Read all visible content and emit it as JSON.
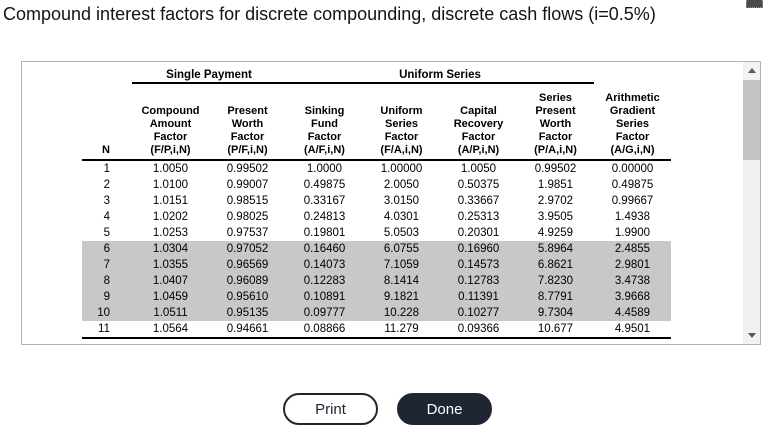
{
  "page": {
    "title": "Compound interest factors for discrete compounding, discrete cash flows (i=0.5%)"
  },
  "table": {
    "groups": [
      {
        "label": "Single Payment",
        "span": 2
      },
      {
        "label": "Uniform Series",
        "span": 4
      }
    ],
    "columns": [
      {
        "label": "N"
      },
      {
        "label": "Compound\nAmount\nFactor\n(F/P,i,N)"
      },
      {
        "label": "Present\nWorth\nFactor\n(P/F,i,N)"
      },
      {
        "label": "Sinking\nFund\nFactor\n(A/F,i,N)"
      },
      {
        "label": "Uniform\nSeries\nFactor\n(F/A,i,N)"
      },
      {
        "label": "Capital\nRecovery\nFactor\n(A/P,i,N)"
      },
      {
        "label": "Series\nPresent\nWorth\nFactor\n(P/A,i,N)"
      },
      {
        "label": "Arithmetic\nGradient\nSeries\nFactor\n(A/G,i,N)"
      }
    ],
    "rows": [
      [
        "1",
        "1.0050",
        "0.99502",
        "1.0000",
        "1.00000",
        "1.0050",
        "0.99502",
        "0.00000"
      ],
      [
        "2",
        "1.0100",
        "0.99007",
        "0.49875",
        "2.0050",
        "0.50375",
        "1.9851",
        "0.49875"
      ],
      [
        "3",
        "1.0151",
        "0.98515",
        "0.33167",
        "3.0150",
        "0.33667",
        "2.9702",
        "0.99667"
      ],
      [
        "4",
        "1.0202",
        "0.98025",
        "0.24813",
        "4.0301",
        "0.25313",
        "3.9505",
        "1.4938"
      ],
      [
        "5",
        "1.0253",
        "0.97537",
        "0.19801",
        "5.0503",
        "0.20301",
        "4.9259",
        "1.9900"
      ],
      [
        "6",
        "1.0304",
        "0.97052",
        "0.16460",
        "6.0755",
        "0.16960",
        "5.8964",
        "2.4855"
      ],
      [
        "7",
        "1.0355",
        "0.96569",
        "0.14073",
        "7.1059",
        "0.14573",
        "6.8621",
        "2.9801"
      ],
      [
        "8",
        "1.0407",
        "0.96089",
        "0.12283",
        "8.1414",
        "0.12783",
        "7.8230",
        "3.4738"
      ],
      [
        "9",
        "1.0459",
        "0.95610",
        "0.10891",
        "9.1821",
        "0.11391",
        "8.7791",
        "3.9668"
      ],
      [
        "10",
        "1.0511",
        "0.95135",
        "0.09777",
        "10.228",
        "0.10277",
        "9.7304",
        "4.4589"
      ],
      [
        "11",
        "1.0564",
        "0.94661",
        "0.08866",
        "11.279",
        "0.09366",
        "10.677",
        "4.9501"
      ]
    ],
    "highlighted_rows": [
      "6",
      "7",
      "8",
      "9",
      "10"
    ],
    "highlight_color": "#c8c8c8"
  },
  "buttons": {
    "print": "Print",
    "done": "Done"
  },
  "colors": {
    "accent_dark": "#1e2533",
    "row_highlight": "#c8c8c8"
  },
  "scrollbar": {
    "orientation": "vertical",
    "up_icon": "scroll-up-arrow",
    "down_icon": "scroll-down-arrow"
  }
}
